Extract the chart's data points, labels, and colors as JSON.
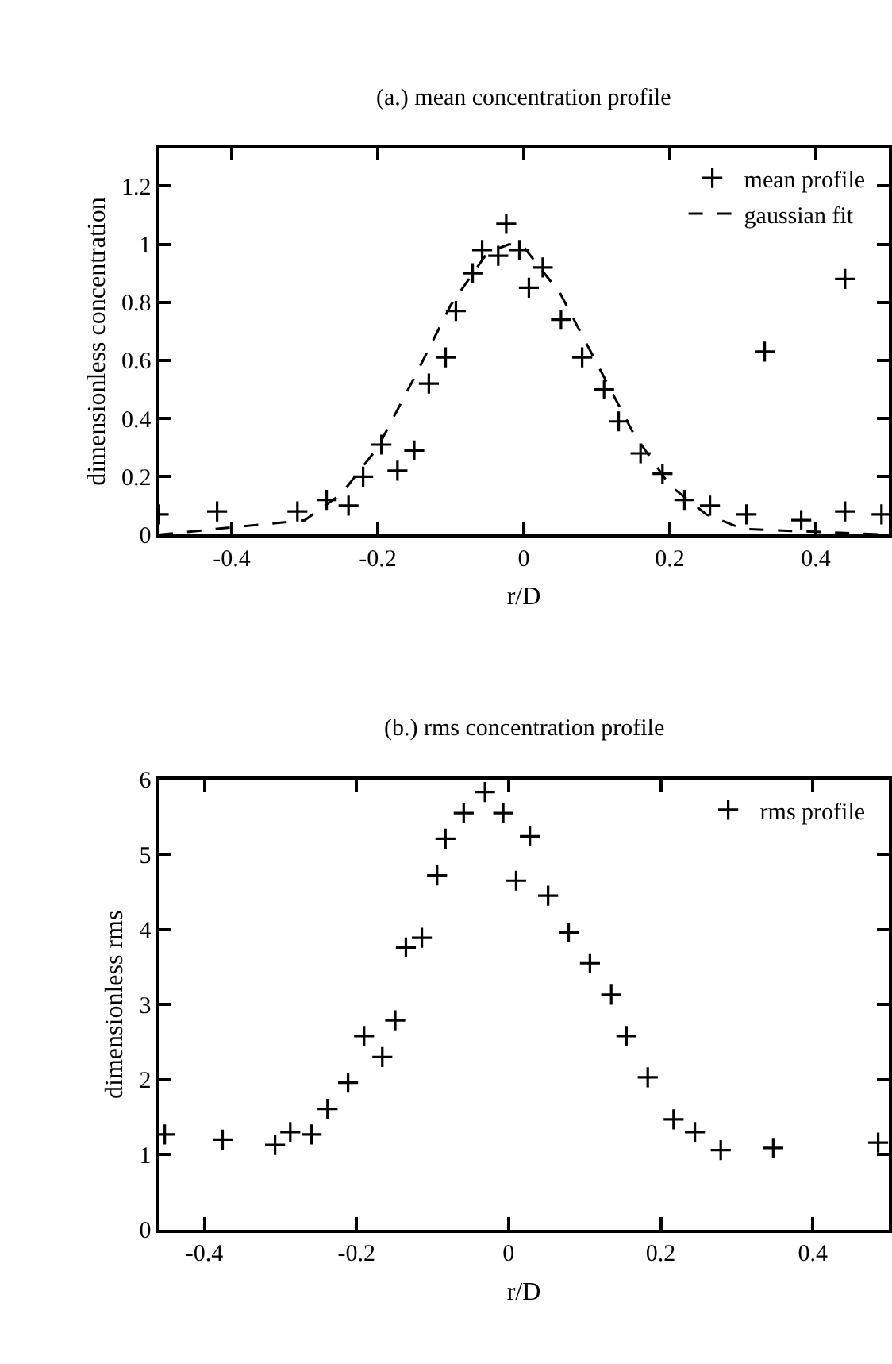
{
  "chart_data": [
    {
      "type": "scatter",
      "title": "(a.) mean concentration profile",
      "xlabel": "r/D",
      "ylabel": "dimensionless concentration",
      "xlim": [
        -0.5,
        0.5
      ],
      "ylim": [
        0,
        1.33
      ],
      "xticks": [
        -0.4,
        -0.2,
        0,
        0.2,
        0.4
      ],
      "yticks": [
        0,
        0.2,
        0.4,
        0.6,
        0.8,
        1,
        1.2
      ],
      "legend": "top right",
      "marker": "cross",
      "series": [
        {
          "name": "mean profile",
          "color": "#000000",
          "x": [
            -0.5,
            -0.42,
            -0.31,
            -0.27,
            -0.24,
            -0.22,
            -0.195,
            -0.173,
            -0.15,
            -0.13,
            -0.107,
            -0.093,
            -0.07,
            -0.057,
            -0.035,
            -0.024,
            -0.006,
            0.007,
            0.026,
            0.051,
            0.08,
            0.11,
            0.13,
            0.16,
            0.19,
            0.22,
            0.255,
            0.305,
            0.33,
            0.38,
            0.44,
            0.44,
            0.49
          ],
          "values": [
            0.07,
            0.08,
            0.08,
            0.12,
            0.1,
            0.2,
            0.31,
            0.22,
            0.29,
            0.52,
            0.61,
            0.77,
            0.9,
            0.98,
            0.96,
            1.07,
            0.98,
            0.85,
            0.92,
            0.74,
            0.61,
            0.5,
            0.39,
            0.28,
            0.21,
            0.12,
            0.1,
            0.07,
            0.63,
            0.05,
            0.88,
            0.08,
            0.07
          ]
        },
        {
          "name": "gaussian fit",
          "color": "#000000",
          "type": "line",
          "line_style": "dashed",
          "marker": "none",
          "x": [
            -0.5,
            -0.3,
            -0.25,
            -0.2,
            -0.15,
            -0.1,
            -0.05,
            -0.02,
            0,
            0.05,
            0.1,
            0.15,
            0.2,
            0.25,
            0.3,
            0.5
          ],
          "values": [
            0.0,
            0.05,
            0.14,
            0.3,
            0.54,
            0.79,
            0.97,
            1.0,
            0.99,
            0.83,
            0.59,
            0.35,
            0.17,
            0.07,
            0.02,
            0.0
          ]
        }
      ]
    },
    {
      "type": "scatter",
      "title": "(b.) rms concentration profile",
      "xlabel": "r/D",
      "ylabel": "dimensionless rms",
      "xlim": [
        -0.46,
        0.5
      ],
      "ylim": [
        0,
        6
      ],
      "xticks": [
        -0.4,
        -0.2,
        0,
        0.2,
        0.4
      ],
      "yticks": [
        0,
        1,
        2,
        3,
        4,
        5,
        6
      ],
      "legend": "top right",
      "marker": "cross",
      "series": [
        {
          "name": "rms profile",
          "color": "#000000",
          "x": [
            -0.452,
            -0.376,
            -0.307,
            -0.287,
            -0.259,
            -0.238,
            -0.211,
            -0.19,
            -0.166,
            -0.149,
            -0.135,
            -0.114,
            -0.094,
            -0.083,
            -0.059,
            -0.031,
            -0.007,
            0.01,
            0.028,
            0.052,
            0.079,
            0.107,
            0.135,
            0.155,
            0.183,
            0.217,
            0.245,
            0.279,
            0.348,
            0.486
          ],
          "values": [
            1.27,
            1.2,
            1.13,
            1.3,
            1.27,
            1.61,
            1.96,
            2.58,
            2.3,
            2.79,
            3.76,
            3.89,
            4.72,
            5.21,
            5.55,
            5.83,
            5.55,
            4.65,
            5.24,
            4.45,
            3.96,
            3.55,
            3.13,
            2.58,
            2.03,
            1.47,
            1.3,
            1.06,
            1.09,
            1.16
          ]
        }
      ]
    }
  ]
}
